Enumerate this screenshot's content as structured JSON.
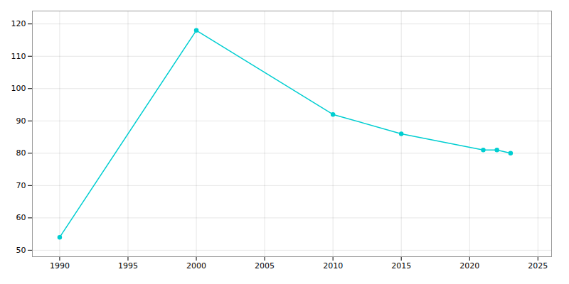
{
  "chart_data": {
    "type": "line",
    "x": [
      1990,
      2000,
      2010,
      2015,
      2021,
      2022,
      2023
    ],
    "values": [
      54,
      118,
      92,
      86,
      81,
      81,
      80
    ],
    "color": "#00CED1",
    "marker": "circle",
    "xlim": [
      1988,
      2026
    ],
    "ylim": [
      48,
      124
    ],
    "xticks": [
      1990,
      1995,
      2000,
      2005,
      2010,
      2015,
      2020,
      2025
    ],
    "yticks": [
      50,
      60,
      70,
      80,
      90,
      100,
      110,
      120
    ],
    "grid": true
  }
}
